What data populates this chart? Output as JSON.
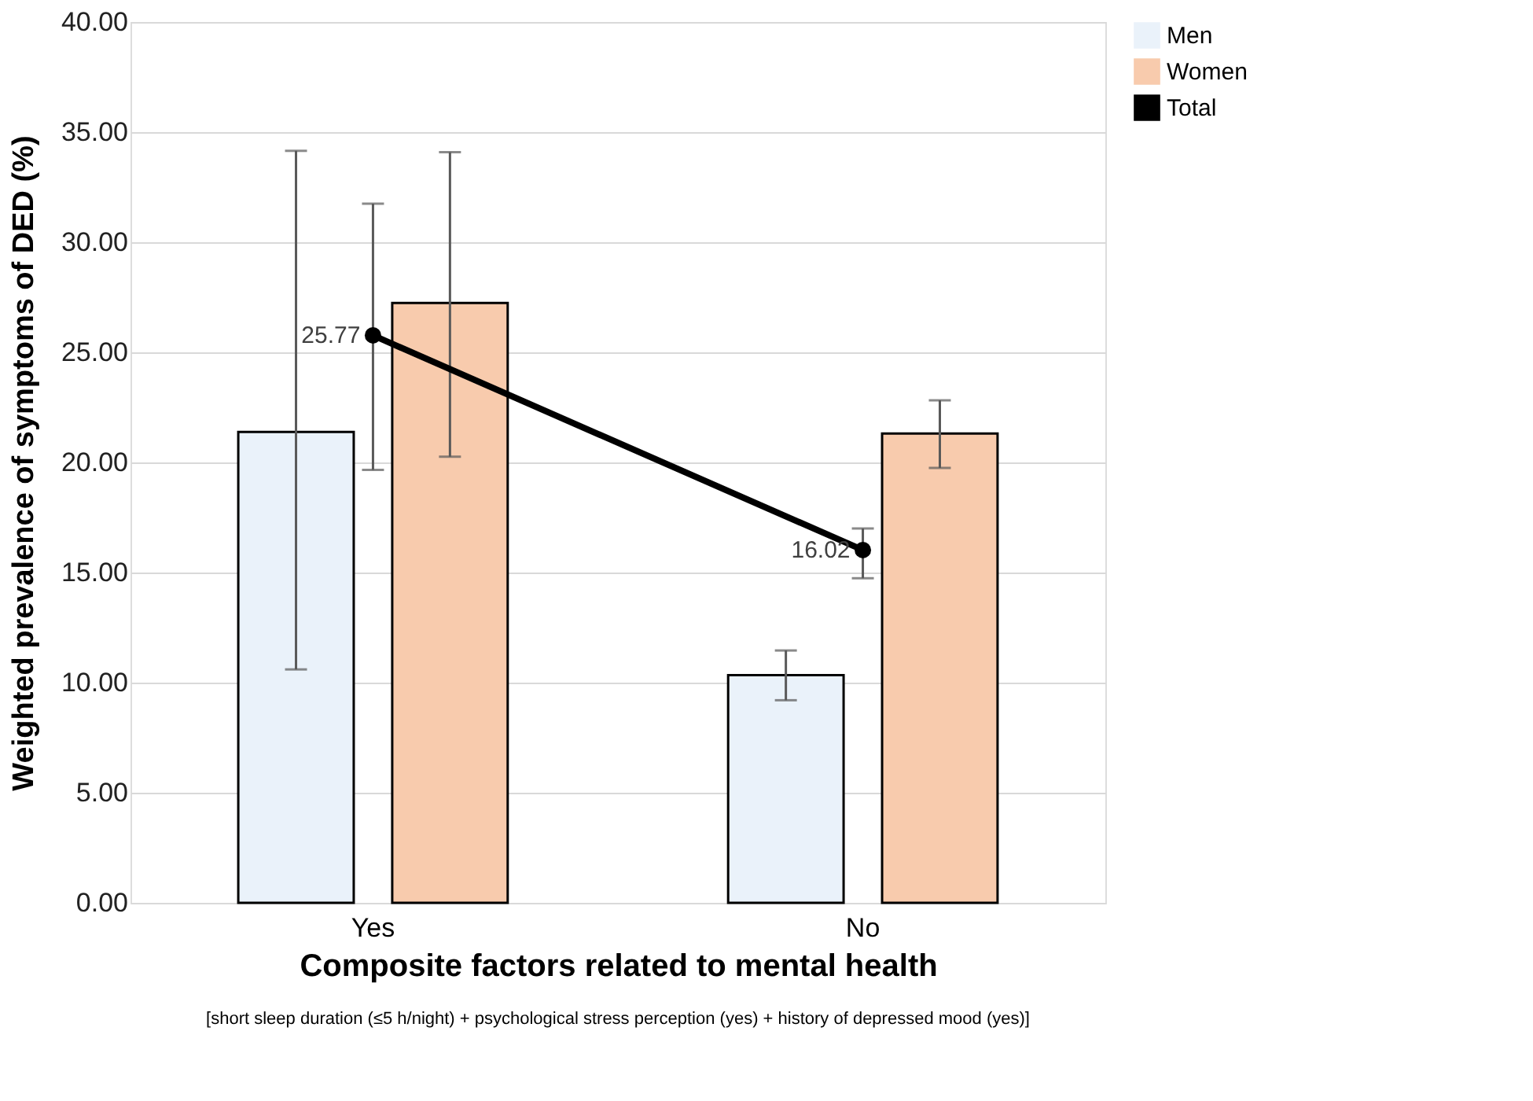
{
  "chart_data": {
    "type": "bar",
    "xlabel": "Composite factors related to mental health",
    "ylabel": "Weighted prevalence of symptoms of DED (%)",
    "categories": [
      "Yes",
      "No"
    ],
    "series": [
      {
        "name": "Men",
        "color": "#eaf2fa",
        "values": [
          21.38,
          10.34
        ],
        "errors": [
          [
            10.6,
            34.15
          ],
          [
            9.2,
            11.46
          ]
        ]
      },
      {
        "name": "Women",
        "color": "#f8cbad",
        "values": [
          27.24,
          21.31
        ],
        "errors": [
          [
            20.26,
            34.09
          ],
          [
            19.75,
            22.82
          ]
        ]
      },
      {
        "name": "Total",
        "type": "line",
        "color": "#000000",
        "values": [
          25.77,
          16.02
        ],
        "errors": [
          [
            19.66,
            31.75
          ],
          [
            14.74,
            17.0
          ]
        ],
        "value_labels": [
          "25.77",
          "16.02"
        ],
        "marker": "circle"
      }
    ],
    "ylim": [
      0,
      40
    ],
    "yticks": [
      {
        "value": 0,
        "label": "0.00"
      },
      {
        "value": 5,
        "label": "5.00"
      },
      {
        "value": 10,
        "label": "10.00"
      },
      {
        "value": 15,
        "label": "15.00"
      },
      {
        "value": 20,
        "label": "20.00"
      },
      {
        "value": 25,
        "label": "25.00"
      },
      {
        "value": 30,
        "label": "30.00"
      },
      {
        "value": 35,
        "label": "35.00"
      },
      {
        "value": 40,
        "label": "40.00"
      }
    ],
    "grid": "y",
    "legend": "right",
    "annotations": [
      "[short sleep duration (≤5 h/night) + psychological stress perception (yes) + history of depressed mood (yes)]"
    ]
  }
}
